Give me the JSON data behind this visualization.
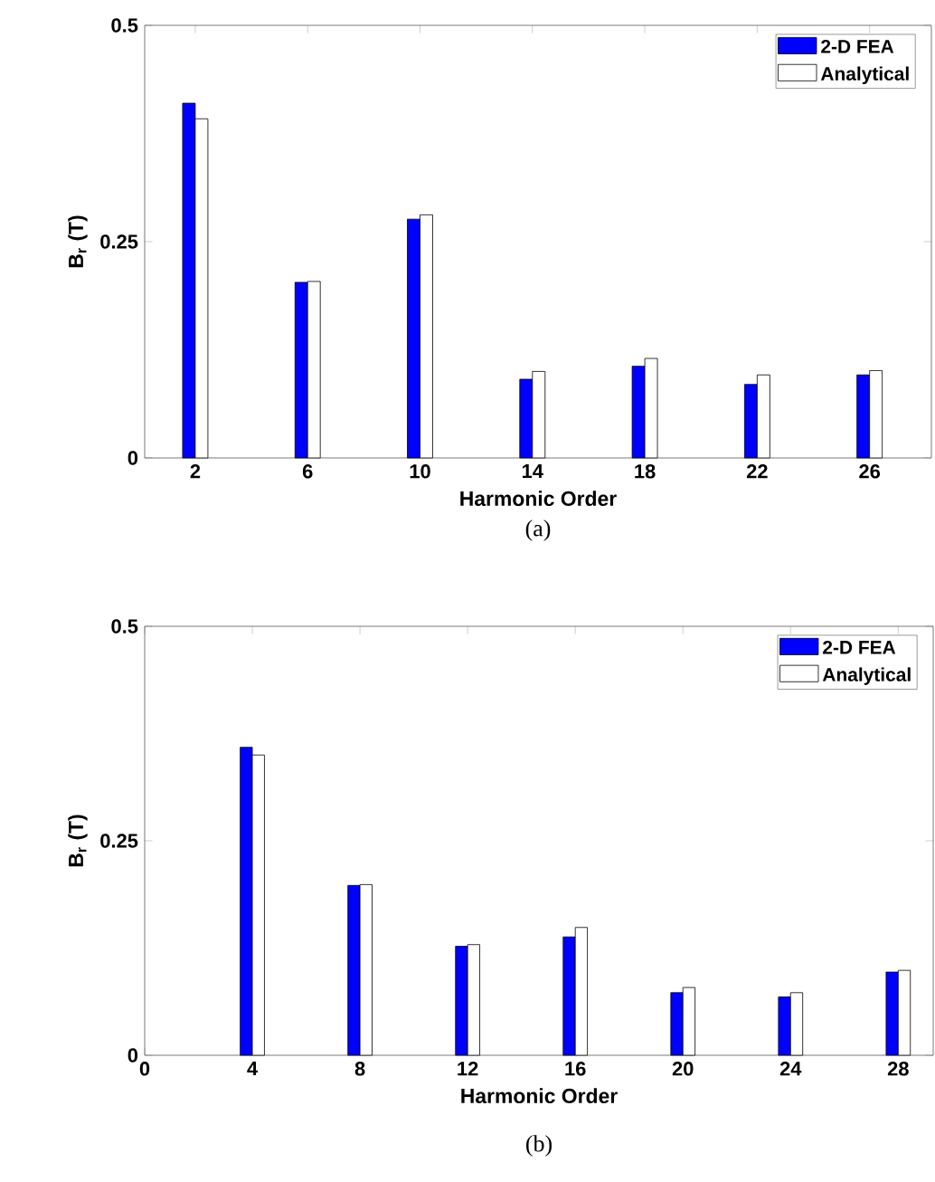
{
  "chart_data": [
    {
      "type": "bar",
      "x": [
        2,
        6,
        10,
        14,
        18,
        22,
        26
      ],
      "xlabel": "Harmonic Order",
      "ylabel": "B$_{r}$ (T)",
      "xlim": [
        0.2,
        28.2
      ],
      "xticks": [
        2,
        6,
        10,
        14,
        18,
        22,
        26
      ],
      "ylim": [
        0,
        0.5
      ],
      "yticks": [
        0,
        0.25,
        0.5
      ],
      "legend": "top right",
      "annotations": [
        "(a)"
      ],
      "series": [
        {
          "name": "2-D FEA",
          "color": "#0000ff",
          "values": [
            0.41,
            0.203,
            0.276,
            0.091,
            0.106,
            0.085,
            0.096
          ]
        },
        {
          "name": "Analytical",
          "color": "#ffffff",
          "values": [
            0.392,
            0.204,
            0.281,
            0.1,
            0.115,
            0.096,
            0.101
          ]
        }
      ]
    },
    {
      "type": "bar",
      "x": [
        4,
        8,
        12,
        16,
        20,
        24,
        28
      ],
      "xlabel": "Harmonic Order",
      "ylabel": "B$_{r}$ (T)",
      "xlim": [
        0,
        29.3
      ],
      "xticks": [
        0,
        4,
        8,
        12,
        16,
        20,
        24,
        28
      ],
      "ylim": [
        0,
        0.5
      ],
      "yticks": [
        0,
        0.25,
        0.5
      ],
      "legend": "top right",
      "annotations": [
        "(b)"
      ],
      "series": [
        {
          "name": "2-D FEA",
          "color": "#0000ff",
          "values": [
            0.359,
            0.198,
            0.127,
            0.138,
            0.073,
            0.068,
            0.097
          ]
        },
        {
          "name": "Analytical",
          "color": "#ffffff",
          "values": [
            0.35,
            0.199,
            0.129,
            0.149,
            0.079,
            0.073,
            0.099
          ]
        }
      ]
    }
  ]
}
